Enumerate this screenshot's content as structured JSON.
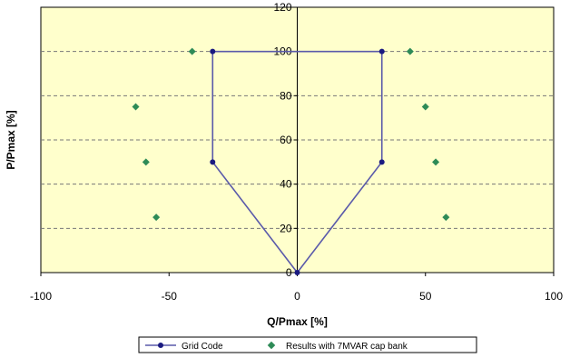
{
  "chart_data": {
    "type": "scatter",
    "title": "",
    "xlabel": "Q/Pmax [%]",
    "ylabel": "P/Pmax [%]",
    "xlim": [
      -100,
      100
    ],
    "ylim": [
      0,
      120
    ],
    "xticks": [
      -100,
      -50,
      0,
      50,
      100
    ],
    "yticks": [
      0,
      20,
      40,
      60,
      80,
      100,
      120
    ],
    "grid": "horizontal dashed",
    "legend_position": "bottom",
    "plot_background": "#ffffcc",
    "series": [
      {
        "name": "Grid Code",
        "kind": "line-with-markers",
        "color": "#1a1a80",
        "points": [
          [
            0,
            0
          ],
          [
            -33,
            50
          ],
          [
            -33,
            100
          ],
          [
            33,
            100
          ],
          [
            33,
            50
          ],
          [
            0,
            0
          ]
        ]
      },
      {
        "name": "Results with 7MVAR cap bank",
        "kind": "markers",
        "color": "#2e8b57",
        "points": [
          [
            -41,
            100
          ],
          [
            -63,
            75
          ],
          [
            -59,
            50
          ],
          [
            -55,
            25
          ],
          [
            44,
            100
          ],
          [
            50,
            75
          ],
          [
            54,
            50
          ],
          [
            58,
            25
          ]
        ]
      }
    ]
  }
}
